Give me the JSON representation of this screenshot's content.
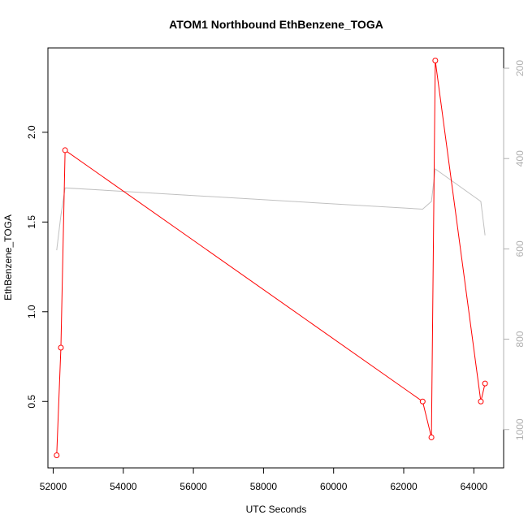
{
  "chart_data": {
    "type": "line",
    "title": "ATOM1 Northbound EthBenzene_TOGA",
    "xlabel": "UTC Seconds",
    "ylabel": "EthBenzene_TOGA",
    "xlim": [
      51850,
      64850
    ],
    "ylim": [
      0.13,
      2.47
    ],
    "y2lim": [
      1085,
      155
    ],
    "y2_inverted": true,
    "x_ticks": [
      52000,
      54000,
      56000,
      58000,
      60000,
      62000,
      64000
    ],
    "y_ticks": [
      0.5,
      1.0,
      1.5,
      2.0
    ],
    "y2_ticks": [
      200,
      400,
      600,
      800,
      1000
    ],
    "x_tick_labels": [
      "52000",
      "54000",
      "56000",
      "58000",
      "60000",
      "62000",
      "64000"
    ],
    "y_tick_labels": [
      "0.5",
      "1.0",
      "1.5",
      "2.0"
    ],
    "y2_tick_labels": [
      "200",
      "400",
      "600",
      "800",
      "1000"
    ],
    "series": [
      {
        "color": "#ff0000",
        "marker": "open-circle",
        "axis": "left",
        "x": [
          52100,
          52220,
          52340,
          62540,
          62790,
          62900,
          64200,
          64320
        ],
        "y": [
          0.2,
          0.8,
          1.9,
          0.5,
          0.3,
          2.4,
          0.5,
          0.6
        ]
      },
      {
        "color": "#c0c0c0",
        "marker": "none",
        "axis": "right",
        "x": [
          52100,
          52220,
          52340,
          62540,
          62790,
          62900,
          64200,
          64320
        ],
        "y": [
          603,
          526,
          465,
          512,
          495,
          423,
          495,
          570
        ]
      }
    ]
  }
}
